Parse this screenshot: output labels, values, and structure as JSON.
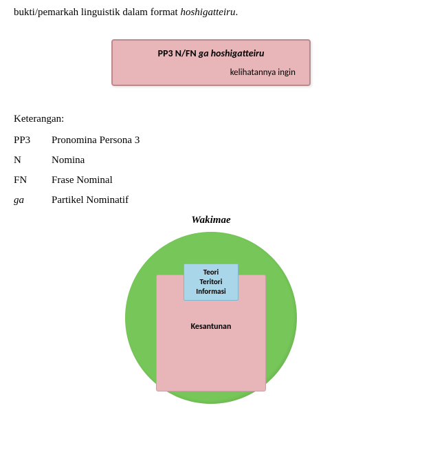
{
  "intro": {
    "prefix": "bukti/pemarkah linguistik dalam format ",
    "italic": "hoshigatteiru",
    "suffix": "."
  },
  "formula": {
    "line1_parts": {
      "p1": "PP3   N/FN  ",
      "ital": "ga  hoshigatteiru"
    },
    "line2": "kelihatannya ingin"
  },
  "keterangan": {
    "heading": "Keterangan:",
    "rows": [
      {
        "key": "PP3",
        "key_italic": false,
        "val": "Pronomina Persona 3"
      },
      {
        "key": "N",
        "key_italic": false,
        "val": "Nomina"
      },
      {
        "key": "FN",
        "key_italic": false,
        "val": "Frase Nominal"
      },
      {
        "key": "ga",
        "key_italic": true,
        "val": "Partikel Nominatif"
      }
    ]
  },
  "diagram": {
    "title": "Wakimae",
    "circle_color": "#76c659",
    "pink_rect": {
      "label": "Kesantunan",
      "color": "#e8b5b9",
      "border": "#caa0a4"
    },
    "blue_rect": {
      "label": "Teori\nTeritori\nInformasi",
      "color": "#a9d6e8",
      "border": "#7fb6cd"
    }
  }
}
